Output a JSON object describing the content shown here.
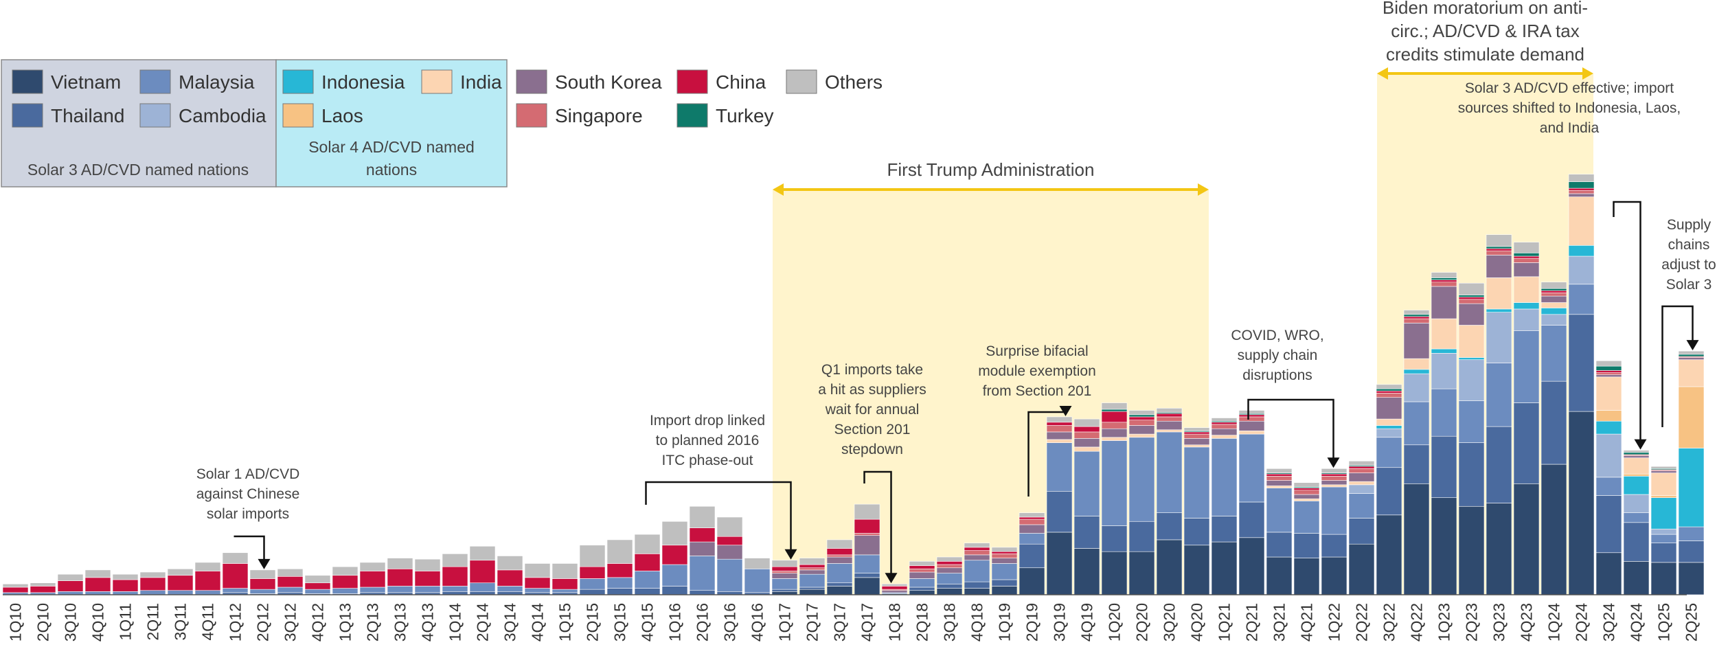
{
  "chart_data": {
    "type": "bar",
    "stacked": true,
    "title": "",
    "xlabel": "",
    "ylabel": "",
    "categories": [
      "1Q10",
      "2Q10",
      "3Q10",
      "4Q10",
      "1Q11",
      "2Q11",
      "3Q11",
      "4Q11",
      "1Q12",
      "2Q12",
      "3Q12",
      "4Q12",
      "1Q13",
      "2Q13",
      "3Q13",
      "4Q13",
      "1Q14",
      "2Q14",
      "3Q14",
      "4Q14",
      "1Q15",
      "2Q15",
      "3Q15",
      "4Q15",
      "1Q16",
      "2Q16",
      "3Q16",
      "4Q16",
      "1Q17",
      "2Q17",
      "3Q17",
      "4Q17",
      "1Q18",
      "2Q18",
      "3Q18",
      "4Q18",
      "1Q19",
      "2Q19",
      "3Q19",
      "4Q19",
      "1Q20",
      "2Q20",
      "3Q20",
      "4Q20",
      "1Q21",
      "2Q21",
      "3Q21",
      "4Q21",
      "1Q22",
      "2Q22",
      "3Q22",
      "4Q22",
      "1Q23",
      "2Q23",
      "3Q23",
      "4Q23",
      "1Q24",
      "2Q24",
      "3Q24",
      "4Q24",
      "1Q25",
      "2Q25"
    ],
    "ylim": [
      0,
      400
    ],
    "series": [
      {
        "name": "Vietnam",
        "color": "#2f4a6e",
        "values": [
          0,
          0,
          0,
          0,
          0,
          0,
          0,
          0,
          0,
          0,
          0,
          0,
          0,
          0,
          0,
          0,
          0,
          0,
          0,
          0,
          0,
          0,
          0,
          0,
          0,
          0,
          0,
          0,
          3,
          5,
          8,
          16,
          1,
          4,
          6,
          6,
          8,
          25,
          58,
          43,
          40,
          40,
          51,
          46,
          49,
          53,
          35,
          34,
          35,
          47,
          74,
          103,
          90,
          82,
          85,
          103,
          121,
          170,
          39,
          31,
          30,
          30
        ]
      },
      {
        "name": "Thailand",
        "color": "#4a6a9e",
        "values": [
          0,
          0,
          0,
          0,
          0,
          0,
          0,
          0,
          2,
          1,
          2,
          1,
          1,
          2,
          2,
          2,
          3,
          3,
          3,
          2,
          2,
          5,
          6,
          6,
          8,
          4,
          3,
          2,
          2,
          2,
          3,
          4,
          0,
          3,
          4,
          6,
          6,
          22,
          38,
          30,
          24,
          28,
          25,
          25,
          24,
          33,
          23,
          23,
          21,
          24,
          44,
          36,
          57,
          59,
          71,
          75,
          77,
          90,
          53,
          36,
          18,
          20
        ]
      },
      {
        "name": "Malaysia",
        "color": "#6c8cbf",
        "values": [
          2,
          2,
          3,
          3,
          3,
          4,
          4,
          4,
          4,
          4,
          5,
          4,
          5,
          5,
          6,
          6,
          5,
          8,
          5,
          4,
          3,
          10,
          10,
          16,
          20,
          32,
          30,
          22,
          10,
          12,
          18,
          17,
          1,
          8,
          10,
          20,
          15,
          10,
          45,
          60,
          79,
          78,
          75,
          66,
          72,
          63,
          41,
          30,
          44,
          23,
          28,
          40,
          44,
          39,
          59,
          67,
          52,
          28,
          17,
          9,
          8,
          13
        ]
      },
      {
        "name": "Cambodia",
        "color": "#9db3d6",
        "values": [
          0,
          0,
          0,
          0,
          0,
          0,
          0,
          0,
          0,
          0,
          0,
          0,
          0,
          0,
          0,
          0,
          0,
          0,
          0,
          0,
          0,
          0,
          0,
          0,
          0,
          0,
          0,
          0,
          0,
          0,
          0,
          0,
          0,
          0,
          0,
          0,
          0,
          0,
          0,
          0,
          0,
          0,
          0,
          0,
          0,
          0,
          0,
          0,
          0,
          8,
          8,
          26,
          33,
          38,
          47,
          20,
          10,
          26,
          40,
          17,
          5,
          0
        ]
      },
      {
        "name": "Indonesia",
        "color": "#27b7d6",
        "values": [
          0,
          0,
          0,
          0,
          0,
          0,
          0,
          0,
          0,
          0,
          0,
          0,
          0,
          0,
          0,
          0,
          0,
          0,
          0,
          0,
          0,
          0,
          0,
          0,
          0,
          0,
          0,
          0,
          0,
          0,
          0,
          0,
          0,
          0,
          0,
          0,
          0,
          0,
          0,
          0,
          0,
          0,
          0,
          0,
          0,
          0,
          0,
          0,
          0,
          0,
          3,
          4,
          4,
          2,
          3,
          6,
          6,
          10,
          12,
          17,
          29,
          73
        ]
      },
      {
        "name": "Laos",
        "color": "#f7c283",
        "values": [
          0,
          0,
          0,
          0,
          0,
          0,
          0,
          0,
          0,
          0,
          0,
          0,
          0,
          0,
          0,
          0,
          0,
          0,
          0,
          0,
          0,
          0,
          0,
          0,
          0,
          0,
          0,
          0,
          0,
          0,
          0,
          0,
          0,
          0,
          0,
          0,
          0,
          0,
          0,
          0,
          0,
          0,
          0,
          0,
          0,
          0,
          0,
          0,
          0,
          0,
          0,
          0,
          0,
          0,
          0,
          0,
          0,
          0,
          10,
          2,
          2,
          57
        ]
      },
      {
        "name": "India",
        "color": "#fcd5b2",
        "values": [
          0,
          0,
          0,
          0,
          0,
          0,
          0,
          0,
          0,
          0,
          0,
          0,
          0,
          0,
          0,
          0,
          0,
          0,
          0,
          0,
          0,
          0,
          0,
          0,
          0,
          0,
          0,
          0,
          0,
          0,
          0,
          0,
          0,
          0,
          0,
          0,
          0,
          0,
          3,
          4,
          3,
          3,
          2,
          2,
          3,
          3,
          2,
          2,
          2,
          3,
          6,
          10,
          28,
          30,
          29,
          24,
          5,
          45,
          31,
          15,
          21,
          25
        ]
      },
      {
        "name": "South Korea",
        "color": "#8a6f8f",
        "values": [
          0,
          0,
          0,
          0,
          0,
          0,
          0,
          0,
          0,
          0,
          0,
          0,
          0,
          0,
          0,
          0,
          0,
          0,
          0,
          0,
          0,
          0,
          0,
          0,
          0,
          13,
          13,
          0,
          5,
          4,
          6,
          18,
          2,
          6,
          5,
          5,
          5,
          8,
          7,
          8,
          8,
          8,
          8,
          6,
          6,
          9,
          5,
          4,
          4,
          8,
          20,
          33,
          30,
          20,
          21,
          13,
          6,
          3,
          2,
          2,
          2,
          2
        ]
      },
      {
        "name": "Singapore",
        "color": "#d46b72",
        "values": [
          0,
          0,
          0,
          0,
          0,
          0,
          0,
          0,
          0,
          0,
          0,
          0,
          0,
          0,
          0,
          0,
          0,
          0,
          0,
          0,
          0,
          0,
          0,
          0,
          0,
          0,
          0,
          0,
          2,
          2,
          2,
          2,
          1,
          3,
          3,
          4,
          4,
          5,
          6,
          6,
          6,
          5,
          4,
          4,
          4,
          4,
          4,
          4,
          4,
          4,
          4,
          4,
          4,
          4,
          4,
          4,
          3,
          3,
          2,
          1,
          1,
          1
        ]
      },
      {
        "name": "China",
        "color": "#c8103f",
        "values": [
          5,
          6,
          10,
          13,
          11,
          12,
          14,
          18,
          23,
          10,
          10,
          6,
          12,
          15,
          16,
          14,
          18,
          21,
          15,
          10,
          10,
          11,
          13,
          16,
          18,
          13,
          8,
          0,
          4,
          3,
          6,
          13,
          3,
          3,
          3,
          3,
          2,
          2,
          3,
          5,
          10,
          3,
          3,
          2,
          2,
          2,
          2,
          2,
          2,
          2,
          2,
          2,
          2,
          2,
          2,
          2,
          2,
          2,
          2,
          0,
          0,
          0
        ]
      },
      {
        "name": "Turkey",
        "color": "#0e7a6a",
        "values": [
          0,
          0,
          0,
          0,
          0,
          0,
          0,
          0,
          0,
          0,
          0,
          0,
          0,
          0,
          0,
          0,
          0,
          0,
          0,
          0,
          0,
          0,
          0,
          0,
          0,
          0,
          0,
          0,
          0,
          0,
          0,
          0,
          0,
          0,
          0,
          0,
          0,
          0,
          0,
          0,
          2,
          2,
          1,
          1,
          1,
          1,
          1,
          1,
          1,
          1,
          2,
          2,
          2,
          2,
          2,
          3,
          2,
          6,
          4,
          2,
          1,
          2
        ]
      },
      {
        "name": "Others",
        "color": "#bfbfbf",
        "values": [
          3,
          3,
          6,
          7,
          5,
          5,
          6,
          8,
          10,
          8,
          7,
          7,
          8,
          8,
          10,
          11,
          12,
          13,
          13,
          13,
          14,
          20,
          22,
          18,
          22,
          20,
          18,
          10,
          6,
          6,
          8,
          14,
          2,
          4,
          4,
          4,
          4,
          4,
          5,
          7,
          6,
          4,
          4,
          3,
          3,
          3,
          4,
          4,
          4,
          4,
          4,
          4,
          5,
          11,
          11,
          10,
          6,
          7,
          5,
          2,
          2,
          3
        ]
      }
    ],
    "legend": {
      "placement": "top-left",
      "solar3_items": [
        "Vietnam",
        "Malaysia",
        "Thailand",
        "Cambodia"
      ],
      "solar3_caption": "Solar 3 AD/CVD named nations",
      "solar4_items": [
        "Indonesia",
        "India",
        "Laos"
      ],
      "solar4_caption_line1": "Solar 4 AD/CVD named",
      "solar4_caption_line2": "nations",
      "other_items": [
        "South Korea",
        "China",
        "Others",
        "Singapore",
        "Turkey"
      ]
    },
    "periods": [
      {
        "label": "First Trump Administration",
        "start": "1Q17",
        "end": "4Q20",
        "color": "#fff4cc"
      },
      {
        "label_lines": [
          "Biden moratorium on anti-",
          "circ.; AD/CVD & IRA tax",
          "credits stimulate demand"
        ],
        "start": "3Q22",
        "end": "2Q24",
        "color": "#fff4cc"
      }
    ],
    "annotations": [
      {
        "lines": [
          "Solar 1 AD/CVD",
          "against Chinese",
          "solar imports"
        ],
        "target": "2Q12"
      },
      {
        "lines": [
          "Import drop linked",
          "to planned 2016",
          "ITC phase-out"
        ],
        "target": "1Q17"
      },
      {
        "lines": [
          "Q1 imports take",
          "a hit as suppliers",
          "wait for annual",
          "Section 201",
          "stepdown"
        ],
        "target": "1Q18"
      },
      {
        "lines": [
          "Surprise bifacial",
          "module exemption",
          "from Section 201"
        ],
        "target": "3Q19"
      },
      {
        "lines": [
          "COVID, WRO,",
          "supply chain",
          "disruptions"
        ],
        "target": "1Q22"
      },
      {
        "lines": [
          "Solar 3 AD/CVD effective; import",
          "sources shifted to Indonesia, Laos,",
          "and India"
        ],
        "target": "4Q24"
      },
      {
        "lines": [
          "Supply",
          "chains",
          "adjust to",
          "Solar 3"
        ],
        "target": "2Q25"
      }
    ]
  }
}
